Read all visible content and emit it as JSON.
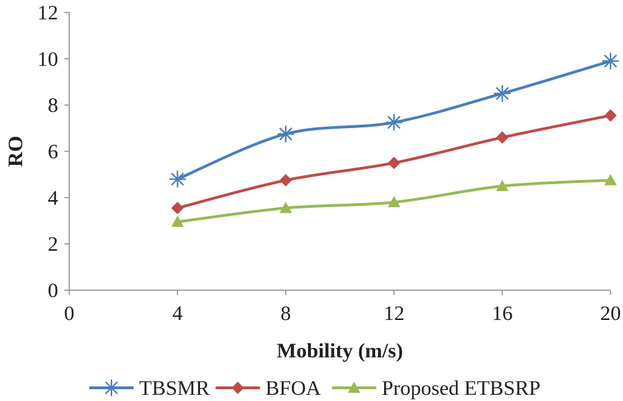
{
  "chart_data": {
    "type": "line",
    "smooth": true,
    "title": "",
    "xlabel": "Mobility (m/s)",
    "ylabel": "RO",
    "xlim": [
      0,
      20
    ],
    "ylim": [
      0,
      12
    ],
    "x_ticks": [
      0,
      4,
      8,
      12,
      16,
      20
    ],
    "y_ticks": [
      0,
      2,
      4,
      6,
      8,
      10,
      12
    ],
    "grid": false,
    "legend_position": "bottom",
    "x": [
      4,
      8,
      12,
      16,
      20
    ],
    "series": [
      {
        "name": "TBSMR",
        "values": [
          4.8,
          6.75,
          7.25,
          8.5,
          9.9
        ],
        "color": "#4a7ebb",
        "marker": "asterisk"
      },
      {
        "name": "BFOA",
        "values": [
          3.55,
          4.75,
          5.5,
          6.6,
          7.55
        ],
        "color": "#be4b48",
        "marker": "diamond"
      },
      {
        "name": "Proposed ETBSRP",
        "values": [
          2.95,
          3.55,
          3.8,
          4.5,
          4.75
        ],
        "color": "#98b954",
        "marker": "triangle"
      }
    ]
  }
}
